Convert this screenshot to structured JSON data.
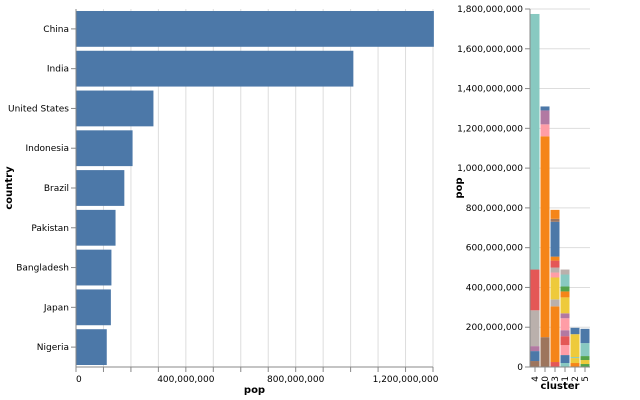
{
  "chart_data": [
    {
      "type": "bar",
      "orientation": "horizontal",
      "categories": [
        "China",
        "India",
        "United States",
        "Indonesia",
        "Brazil",
        "Pakistan",
        "Bangladesh",
        "Japan",
        "Nigeria"
      ],
      "values": [
        1303182268,
        1010000000,
        282000000,
        206000000,
        176000000,
        144000000,
        129000000,
        127000000,
        112000000
      ],
      "xlabel": "pop",
      "ylabel": "country",
      "xlim": [
        0,
        1300000000
      ],
      "xticks": [
        0,
        400000000,
        800000000,
        1200000000
      ],
      "xtick_labels": [
        "0",
        "400,000,000",
        "800,000,000",
        "1,200,000,000"
      ],
      "bar_color": "#4c78a8",
      "grid": true
    },
    {
      "type": "bar",
      "stacked": true,
      "categories": [
        "4",
        "0",
        "3",
        "1",
        "2",
        "5"
      ],
      "totals": [
        1775000000,
        1310000000,
        790000000,
        490000000,
        197000000,
        192000000
      ],
      "xlabel": "cluster",
      "ylabel": "pop",
      "ylim": [
        0,
        1800000000
      ],
      "yticks": [
        0,
        200000000,
        400000000,
        600000000,
        800000000,
        1000000000,
        1200000000,
        1400000000,
        1600000000,
        1800000000
      ],
      "ytick_labels": [
        "0",
        "200,000,000",
        "400,000,000",
        "600,000,000",
        "800,000,000",
        "1,000,000,000",
        "1,200,000,000",
        "1,400,000,000",
        "1,600,000,000",
        "1,800,000,000"
      ],
      "grid": true,
      "stacks": [
        {
          "cluster": "4",
          "segments": [
            {
              "value": 30000000,
              "color": "#9d755d"
            },
            {
              "value": 50000000,
              "color": "#4c78a8"
            },
            {
              "value": 25000000,
              "color": "#b279a2"
            },
            {
              "value": 180000000,
              "color": "#bab0ac"
            },
            {
              "value": 205000000,
              "color": "#e45756"
            },
            {
              "value": 1285000000,
              "color": "#88c9c1"
            }
          ]
        },
        {
          "cluster": "0",
          "segments": [
            {
              "value": 150000000,
              "color": "#9d755d"
            },
            {
              "value": 1010000000,
              "color": "#f58518"
            },
            {
              "value": 60000000,
              "color": "#ff9da6"
            },
            {
              "value": 70000000,
              "color": "#b279a2"
            },
            {
              "value": 20000000,
              "color": "#4c78a8"
            }
          ]
        },
        {
          "cluster": "3",
          "segments": [
            {
              "value": 25000000,
              "color": "#e45756"
            },
            {
              "value": 280000000,
              "color": "#f58518"
            },
            {
              "value": 35000000,
              "color": "#bab0ac"
            },
            {
              "value": 110000000,
              "color": "#eeca3b"
            },
            {
              "value": 25000000,
              "color": "#ff9da6"
            },
            {
              "value": 25000000,
              "color": "#bab0ac"
            },
            {
              "value": 35000000,
              "color": "#e45756"
            },
            {
              "value": 20000000,
              "color": "#f58518"
            },
            {
              "value": 175000000,
              "color": "#4c78a8"
            },
            {
              "value": 15000000,
              "color": "#9d755d"
            },
            {
              "value": 45000000,
              "color": "#f58518"
            }
          ]
        },
        {
          "cluster": "1",
          "segments": [
            {
              "value": 20000000,
              "color": "#88c9c1"
            },
            {
              "value": 40000000,
              "color": "#4c78a8"
            },
            {
              "value": 50000000,
              "color": "#ff9da6"
            },
            {
              "value": 45000000,
              "color": "#e45756"
            },
            {
              "value": 30000000,
              "color": "#b279a2"
            },
            {
              "value": 60000000,
              "color": "#ff9da6"
            },
            {
              "value": 25000000,
              "color": "#b279a2"
            },
            {
              "value": 80000000,
              "color": "#eeca3b"
            },
            {
              "value": 30000000,
              "color": "#f58518"
            },
            {
              "value": 25000000,
              "color": "#54a24b"
            },
            {
              "value": 60000000,
              "color": "#88c9c1"
            },
            {
              "value": 25000000,
              "color": "#bab0ac"
            }
          ]
        },
        {
          "cluster": "2",
          "segments": [
            {
              "value": 20000000,
              "color": "#f58518"
            },
            {
              "value": 25000000,
              "color": "#eeca3b"
            },
            {
              "value": 5000000,
              "color": "#88c9c1"
            },
            {
              "value": 115000000,
              "color": "#eeca3b"
            },
            {
              "value": 32000000,
              "color": "#4c78a8"
            }
          ]
        },
        {
          "cluster": "5",
          "segments": [
            {
              "value": 15000000,
              "color": "#54a24b"
            },
            {
              "value": 20000000,
              "color": "#eeca3b"
            },
            {
              "value": 20000000,
              "color": "#54a24b"
            },
            {
              "value": 65000000,
              "color": "#88c9c1"
            },
            {
              "value": 72000000,
              "color": "#4c78a8"
            }
          ]
        }
      ]
    }
  ]
}
